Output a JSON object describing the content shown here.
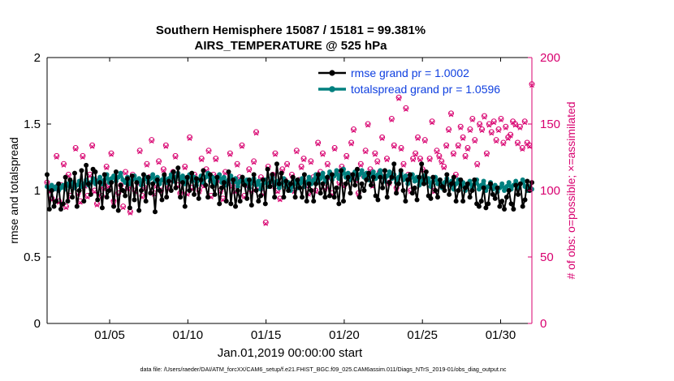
{
  "chart_data": {
    "type": "line",
    "title": "Southern Hemisphere 15087 / 15181 = 99.381%",
    "subtitle": "AIRS_TEMPERATURE @ 525 hPa",
    "xlabel": "Jan.01,2019 00:00:00 start",
    "ylabel_left": "rmse and totalspread",
    "ylabel_right": "# of obs: o=possible; ×=assimilated",
    "ylim_left": [
      0,
      2
    ],
    "ylim_right": [
      0,
      200
    ],
    "xlim_days": [
      1,
      32
    ],
    "yticks_left": [
      "0",
      "0.5",
      "1",
      "1.5",
      "2"
    ],
    "yticks_right": [
      "0",
      "50",
      "100",
      "150",
      "200"
    ],
    "xticks": [
      "01/05",
      "01/10",
      "01/15",
      "01/20",
      "01/25",
      "01/30"
    ],
    "legend_position": "top-right",
    "colors": {
      "rmse": "#000000",
      "totalspread": "#00807F",
      "obs": "#D8006F",
      "legend_text": "#1040E0"
    },
    "series": [
      {
        "name": "rmse grand pr = 1.0002",
        "axis": "left",
        "values": [
          1.12,
          0.86,
          1.0,
          0.88,
          0.92,
          1.05,
          0.86,
          0.9,
          1.1,
          0.92,
          1.08,
          0.95,
          1.13,
          0.88,
          1.0,
          1.15,
          0.92,
          1.19,
          1.05,
          0.97,
          1.16,
          1.14,
          0.93,
          1.06,
          0.87,
          1.12,
          0.95,
          1.0,
          1.06,
          0.88,
          1.14,
          0.85,
          1.04,
          1.0,
          0.96,
          1.09,
          0.87,
          1.11,
          0.93,
          1.06,
          0.85,
          1.0,
          1.12,
          0.92,
          1.1,
          0.98,
          1.05,
          0.84,
          1.08,
          1.0,
          0.93,
          1.12,
          0.95,
          1.07,
          1.0,
          1.14,
          1.02,
          1.17,
          0.95,
          1.06,
          0.88,
          1.1,
          1.0,
          1.13,
          0.97,
          1.09,
          0.94,
          1.08,
          1.15,
          1.04,
          0.95,
          1.12,
          1.03,
          0.97,
          1.1,
          0.9,
          1.02,
          1.06,
          0.92,
          1.14,
          0.9,
          1.08,
          0.88,
          1.0,
          0.92,
          1.1,
          1.04,
          0.94,
          1.08,
          0.89,
          1.12,
          1.0,
          0.92,
          0.96,
          1.08,
          0.9,
          1.16,
          1.03,
          1.12,
          0.95,
          1.2,
          1.05,
          1.13,
          0.95,
          1.07,
          1.0,
          1.05,
          1.1,
          0.95,
          1.08,
          1.02,
          0.95,
          1.12,
          0.92,
          1.05,
          1.0,
          0.92,
          1.05,
          1.12,
          0.98,
          1.05,
          0.95,
          1.1,
          0.96,
          1.12,
          0.95,
          1.02,
          0.9,
          1.15,
          0.92,
          1.05,
          1.1,
          0.98,
          1.12,
          1.04,
          1.16,
          0.95,
          1.05,
          1.0,
          1.08,
          1.13,
          1.04,
          1.1,
          0.96,
          0.93,
          1.1,
          1.02,
          1.15,
          0.95,
          1.06,
          1.1,
          1.2,
          0.98,
          1.05,
          1.15,
          1.0,
          0.92,
          1.08,
          1.12,
          0.98,
          1.02,
          0.93,
          1.1,
          1.2,
          1.05,
          1.14,
          0.96,
          0.94,
          1.1,
          1.0,
          0.95,
          1.08,
          1.03,
          1.0,
          1.12,
          0.97,
          1.05,
          1.1,
          0.92,
          1.0,
          1.08,
          0.92,
          1.02,
          1.05,
          0.95,
          1.0,
          1.08,
          0.9,
          0.88,
          0.92,
          1.02,
          0.87,
          0.9,
          1.05,
          0.97,
          0.94,
          1.02,
          0.88,
          0.92,
          0.86,
          0.95,
          1.0,
          0.9,
          0.86,
          1.04,
          0.97,
          1.05,
          0.88,
          0.93,
          1.07,
          1.0,
          1.06
        ]
      },
      {
        "name": "totalspread grand pr = 1.0596",
        "axis": "left",
        "values": [
          1.03,
          1.02,
          1.04,
          1.01,
          1.03,
          1.0,
          1.02,
          1.04,
          1.01,
          1.05,
          1.03,
          1.06,
          1.02,
          1.04,
          1.07,
          1.03,
          1.05,
          1.08,
          1.04,
          1.06,
          1.09,
          1.05,
          1.07,
          1.1,
          1.05,
          1.08,
          1.12,
          1.06,
          1.09,
          1.11,
          1.07,
          1.1,
          1.13,
          1.08,
          1.06,
          1.1,
          1.05,
          1.08,
          1.11,
          1.06,
          1.09,
          1.04,
          1.08,
          1.1,
          1.06,
          1.09,
          1.12,
          1.07,
          1.1,
          1.05,
          1.08,
          1.11,
          1.06,
          1.09,
          1.12,
          1.07,
          1.1,
          1.13,
          1.08,
          1.11,
          1.05,
          1.09,
          1.12,
          1.07,
          1.1,
          1.04,
          1.08,
          1.11,
          1.06,
          1.1,
          1.13,
          1.07,
          1.1,
          1.05,
          1.09,
          1.12,
          1.06,
          1.1,
          1.04,
          1.08,
          1.11,
          1.06,
          1.09,
          1.03,
          1.07,
          1.1,
          1.05,
          1.08,
          1.02,
          1.06,
          1.09,
          1.04,
          1.07,
          1.01,
          1.05,
          1.08,
          1.03,
          1.06,
          1.1,
          1.04,
          1.07,
          1.02,
          1.05,
          1.09,
          1.03,
          1.06,
          1.0,
          1.04,
          1.07,
          1.02,
          1.05,
          1.09,
          1.03,
          1.06,
          1.1,
          1.05,
          1.08,
          1.12,
          1.06,
          1.09,
          1.13,
          1.07,
          1.1,
          1.14,
          1.08,
          1.11,
          1.15,
          1.09,
          1.12,
          1.16,
          1.1,
          1.13,
          1.08,
          1.11,
          1.14,
          1.09,
          1.12,
          1.15,
          1.1,
          1.13,
          1.08,
          1.11,
          1.14,
          1.09,
          1.12,
          1.15,
          1.1,
          1.07,
          1.11,
          1.14,
          1.09,
          1.12,
          1.06,
          1.1,
          1.13,
          1.08,
          1.11,
          1.05,
          1.09,
          1.12,
          1.07,
          1.1,
          1.04,
          1.08,
          1.11,
          1.06,
          1.09,
          1.03,
          1.07,
          1.1,
          1.05,
          1.08,
          1.02,
          1.06,
          1.09,
          1.04,
          1.07,
          1.01,
          1.05,
          1.08,
          1.03,
          1.06,
          1.0,
          1.04,
          1.07,
          1.02,
          1.05,
          1.08,
          1.01,
          1.04,
          1.07,
          1.0,
          1.03,
          1.06,
          1.01,
          1.04,
          0.99,
          1.02,
          1.05,
          1.0,
          1.03,
          1.06,
          1.01,
          1.04,
          1.07,
          1.02,
          1.05,
          1.08,
          1.03,
          1.0,
          1.03,
          1.01
        ]
      },
      {
        "name": "obs possible",
        "axis": "right",
        "marker": "o",
        "values": [
          106,
          100,
          94,
          102,
          126,
          92,
          104,
          120,
          88,
          112,
          96,
          104,
          132,
          98,
          92,
          126,
          104,
          96,
          112,
          134,
          100,
          90,
          108,
          96,
          102,
          118,
          104,
          128,
          92,
          110,
          98,
          104,
          88,
          114,
          102,
          84,
          112,
          100,
          106,
          130,
          96,
          102,
          120,
          110,
          138,
          98,
          104,
          122,
          100,
          116,
          134,
          102,
          108,
          114,
          126,
          104,
          98,
          110,
          118,
          98,
          140,
          102,
          112,
          108,
          100,
          124,
          104,
          116,
          130,
          96,
          112,
          124,
          108,
          100,
          94,
          114,
          106,
          128,
          104,
          100,
          120,
          110,
          134,
          96,
          104,
          116,
          100,
          122,
          144,
          102,
          110,
          98,
          76,
          118,
          104,
          112,
          128,
          100,
          94,
          116,
          108,
          120,
          104,
          112,
          100,
          130,
          108,
          118,
          124,
          104,
          98,
          122,
          110,
          100,
          136,
          114,
          128,
          102,
          120,
          110,
          98,
          132,
          114,
          106,
          118,
          104,
          126,
          112,
          136,
          146,
          108,
          98,
          120,
          112,
          130,
          150,
          116,
          104,
          128,
          122,
          114,
          140,
          110,
          124,
          106,
          154,
          134,
          102,
          170,
          132,
          120,
          162,
          112,
          100,
          124,
          128,
          140,
          124,
          116,
          138,
          108,
          124,
          152,
          100,
          130,
          126,
          122,
          118,
          134,
          146,
          158,
          128,
          112,
          134,
          148,
          140,
          126,
          132,
          146,
          154,
          138,
          120,
          150,
          146,
          156,
          128,
          150,
          144,
          152,
          138,
          146,
          154,
          136,
          148,
          140,
          142,
          152,
          150,
          136,
          148,
          132,
          152,
          136,
          134,
          180
        ]
      },
      {
        "name": "obs assimilated",
        "axis": "right",
        "marker": "x",
        "values": [
          105,
          99,
          93,
          101,
          125,
          91,
          103,
          119,
          87,
          111,
          95,
          103,
          131,
          97,
          91,
          125,
          103,
          95,
          111,
          133,
          99,
          89,
          107,
          95,
          101,
          117,
          103,
          127,
          91,
          109,
          97,
          103,
          87,
          113,
          101,
          83,
          111,
          99,
          105,
          129,
          95,
          101,
          119,
          109,
          137,
          97,
          103,
          121,
          99,
          115,
          133,
          101,
          107,
          113,
          125,
          103,
          97,
          109,
          117,
          97,
          139,
          101,
          111,
          107,
          99,
          123,
          103,
          115,
          129,
          95,
          111,
          123,
          107,
          99,
          93,
          113,
          105,
          127,
          103,
          99,
          119,
          109,
          133,
          95,
          103,
          115,
          99,
          121,
          143,
          101,
          109,
          97,
          75,
          117,
          103,
          111,
          127,
          99,
          93,
          115,
          107,
          119,
          103,
          111,
          99,
          129,
          107,
          117,
          123,
          103,
          97,
          121,
          109,
          99,
          135,
          113,
          127,
          101,
          119,
          109,
          97,
          131,
          113,
          105,
          117,
          103,
          125,
          111,
          135,
          145,
          107,
          97,
          119,
          111,
          129,
          149,
          115,
          103,
          127,
          121,
          113,
          139,
          109,
          123,
          105,
          153,
          133,
          101,
          169,
          131,
          119,
          161,
          111,
          99,
          123,
          127,
          139,
          123,
          115,
          137,
          107,
          123,
          151,
          99,
          129,
          125,
          121,
          117,
          133,
          145,
          157,
          127,
          111,
          133,
          147,
          139,
          125,
          131,
          145,
          153,
          137,
          119,
          149,
          145,
          155,
          127,
          149,
          143,
          151,
          137,
          145,
          153,
          135,
          147,
          139,
          141,
          151,
          149,
          135,
          147,
          131,
          151,
          135,
          133,
          179
        ]
      }
    ]
  },
  "footer": {
    "data_file": "data file: /Users/raeder/DAI/ATM_forcXX/CAM6_setup/f.e21.FHIST_BGC.f09_025.CAM6assim.011/Diags_NTrS_2019-01/obs_diag_output.nc"
  }
}
